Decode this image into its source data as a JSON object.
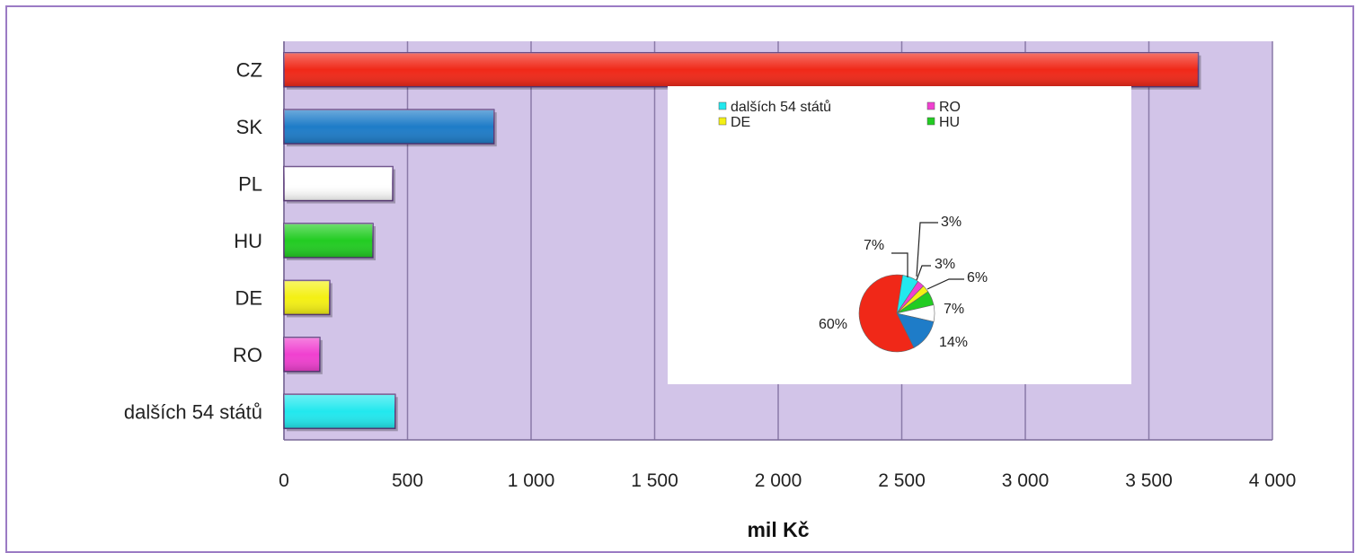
{
  "chart_data": [
    {
      "type": "bar",
      "orientation": "horizontal",
      "categories": [
        "CZ",
        "SK",
        "PL",
        "HU",
        "DE",
        "RO",
        "dalších 54 států"
      ],
      "values": [
        3700,
        850,
        440,
        360,
        185,
        145,
        450
      ],
      "colors": [
        "#f02818",
        "#1e7cc8",
        "#ffffff",
        "#22cc22",
        "#f4f014",
        "#f040d0",
        "#22e8ee"
      ],
      "xlabel": "mil Kč",
      "ylabel": "",
      "xlim": [
        0,
        4000
      ],
      "xticks": [
        0,
        500,
        1000,
        1500,
        2000,
        2500,
        3000,
        3500,
        4000
      ],
      "xtick_labels": [
        "0",
        "500",
        "1 000",
        "1 500",
        "2 000",
        "2 500",
        "3 000",
        "3 500",
        "4 000"
      ],
      "grid": "vertical",
      "plot_background": "#d2c4e8"
    },
    {
      "type": "pie",
      "legend_placement": "top",
      "legend": [
        "dalších 54 států",
        "RO",
        "DE",
        "HU"
      ],
      "legend_colors": [
        "#22e8ee",
        "#f040d0",
        "#f4f014",
        "#22cc22"
      ],
      "slices": [
        {
          "label": "CZ",
          "value": 60,
          "text": "60%",
          "color": "#f02818"
        },
        {
          "label": "dalších 54 států",
          "value": 7,
          "text": "7%",
          "color": "#22e8ee"
        },
        {
          "label": "RO",
          "value": 3,
          "text": "3%",
          "color": "#f040d0"
        },
        {
          "label": "DE",
          "value": 3,
          "text": "3%",
          "color": "#f4f014"
        },
        {
          "label": "HU",
          "value": 6,
          "text": "6%",
          "color": "#22cc22"
        },
        {
          "label": "PL",
          "value": 7,
          "text": "7%",
          "color": "#ffffff"
        },
        {
          "label": "SK",
          "value": 14,
          "text": "14%",
          "color": "#1e7cc8"
        }
      ]
    }
  ]
}
